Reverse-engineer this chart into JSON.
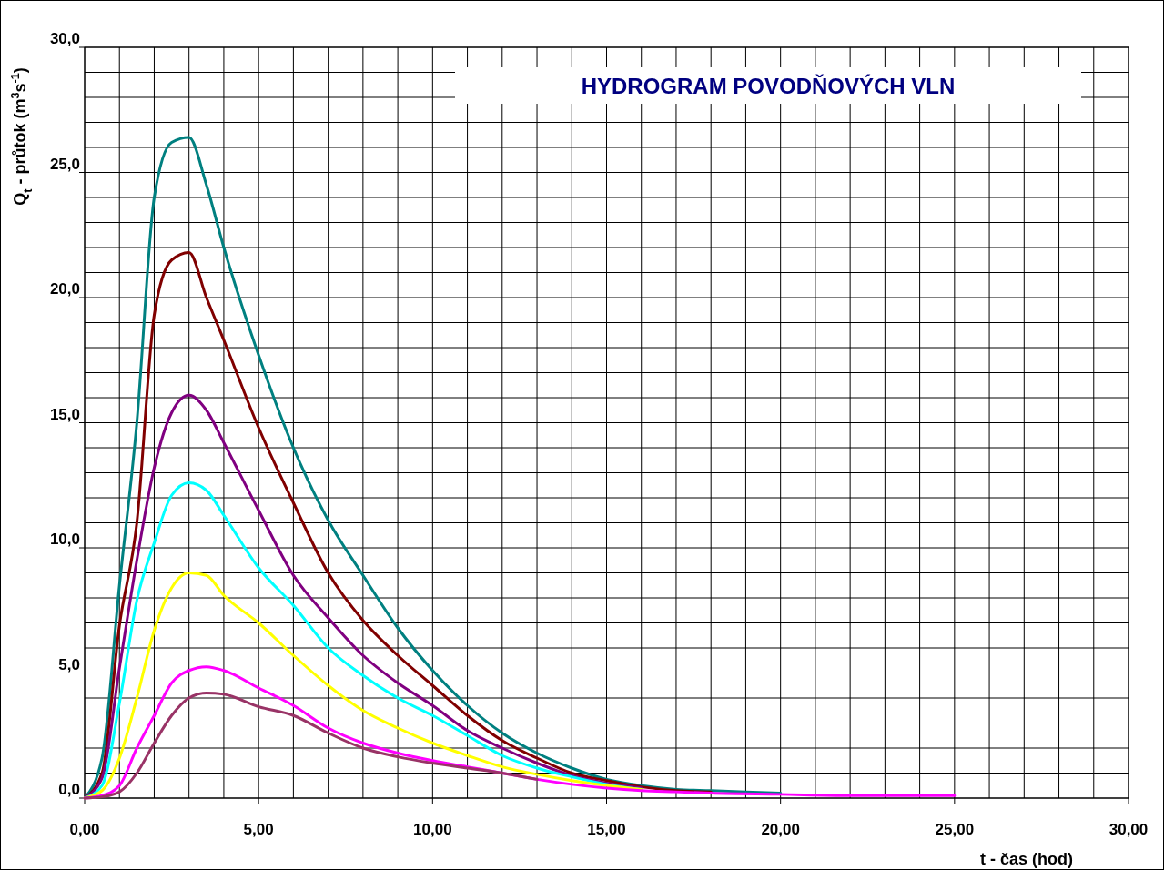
{
  "chart_data": {
    "type": "line",
    "title": "HYDROGRAM  POVODŇOVÝCH  VLN",
    "xlabel": "t -  čas (hod)",
    "ylabel": "Q$_{t}$ -  průtok (m$^{3}$s$^{-1}$)",
    "x": [
      0,
      0.5,
      1,
      1.5,
      2,
      2.5,
      3,
      3.5,
      4,
      5,
      6,
      7,
      8,
      9,
      10,
      11,
      12,
      13,
      14,
      15,
      16,
      17,
      18,
      20,
      22,
      25
    ],
    "series": [
      {
        "color": "#008080",
        "values": [
          0,
          1.6,
          8.5,
          15,
          24,
          26.2,
          26.4,
          24.5,
          22,
          17.7,
          14,
          11.1,
          8.9,
          6.8,
          5.1,
          3.7,
          2.6,
          1.8,
          1.2,
          0.75,
          0.5,
          0.35,
          0.3,
          0.2,
          null,
          null
        ]
      },
      {
        "color": "#800000",
        "values": [
          0,
          1,
          6.9,
          11,
          19.3,
          21.5,
          21.8,
          20,
          18.3,
          14.8,
          11.8,
          9,
          7.1,
          5.7,
          4.5,
          3.3,
          2.3,
          1.6,
          1,
          0.7,
          0.45,
          0.3,
          0.25,
          null,
          null,
          null
        ]
      },
      {
        "color": "#800080",
        "values": [
          0,
          0.8,
          5.2,
          9.5,
          13.2,
          15.4,
          16.1,
          15.5,
          14.2,
          11.5,
          8.9,
          7.2,
          5.7,
          4.6,
          3.7,
          2.7,
          2,
          1.4,
          0.9,
          0.6,
          0.4,
          null,
          null,
          null,
          null,
          null
        ]
      },
      {
        "color": "#00ffff",
        "values": [
          0,
          0.5,
          3.8,
          7.9,
          10.2,
          12.1,
          12.6,
          12.3,
          11.3,
          9.2,
          7.7,
          6,
          4.9,
          4,
          3.3,
          2.5,
          1.7,
          1.2,
          0.85,
          0.55,
          0.35,
          null,
          null,
          null,
          null,
          null
        ]
      },
      {
        "color": "#ffff00",
        "values": [
          0,
          0.3,
          1.6,
          4,
          6.7,
          8.4,
          9,
          8.9,
          8.1,
          7,
          5.7,
          4.5,
          3.5,
          2.8,
          2.2,
          1.7,
          1.25,
          0.95,
          0.7,
          0.5,
          0.35,
          null,
          null,
          null,
          null,
          null
        ]
      },
      {
        "color": "#ff00ff",
        "values": [
          0,
          0.1,
          0.5,
          2,
          3.3,
          4.6,
          5.1,
          5.25,
          5.1,
          4.4,
          3.7,
          2.8,
          2.2,
          1.8,
          1.5,
          1.25,
          1,
          0.75,
          0.55,
          0.4,
          0.3,
          0.25,
          0.2,
          0.15,
          0.1,
          0.1
        ]
      },
      {
        "color": "#993366",
        "values": [
          0,
          0.05,
          0.25,
          1,
          2.2,
          3.3,
          4,
          4.2,
          4.15,
          3.65,
          3.3,
          2.6,
          2,
          1.65,
          1.4,
          1.2,
          1,
          0.75,
          null,
          null,
          null,
          null,
          null,
          null,
          null,
          null
        ]
      }
    ],
    "xlim": [
      0,
      30
    ],
    "ylim": [
      0,
      30
    ],
    "xticks": [
      {
        "value": 0,
        "label": "0,00"
      },
      {
        "value": 1,
        "label": null
      },
      {
        "value": 2,
        "label": null
      },
      {
        "value": 3,
        "label": null
      },
      {
        "value": 4,
        "label": null
      },
      {
        "value": 5,
        "label": "5,00"
      },
      {
        "value": 6,
        "label": null
      },
      {
        "value": 7,
        "label": null
      },
      {
        "value": 8,
        "label": null
      },
      {
        "value": 9,
        "label": null
      },
      {
        "value": 10,
        "label": "10,00"
      },
      {
        "value": 11,
        "label": null
      },
      {
        "value": 12,
        "label": null
      },
      {
        "value": 13,
        "label": null
      },
      {
        "value": 14,
        "label": null
      },
      {
        "value": 15,
        "label": "15,00"
      },
      {
        "value": 16,
        "label": null
      },
      {
        "value": 17,
        "label": null
      },
      {
        "value": 18,
        "label": null
      },
      {
        "value": 19,
        "label": null
      },
      {
        "value": 20,
        "label": "20,00"
      },
      {
        "value": 21,
        "label": null
      },
      {
        "value": 22,
        "label": null
      },
      {
        "value": 23,
        "label": null
      },
      {
        "value": 24,
        "label": null
      },
      {
        "value": 25,
        "label": "25,00"
      },
      {
        "value": 26,
        "label": null
      },
      {
        "value": 27,
        "label": null
      },
      {
        "value": 28,
        "label": null
      },
      {
        "value": 29,
        "label": null
      },
      {
        "value": 30,
        "label": "30,00"
      }
    ],
    "yticks": [
      {
        "value": 0,
        "label": "0,0"
      },
      {
        "value": 1,
        "label": null
      },
      {
        "value": 2,
        "label": null
      },
      {
        "value": 3,
        "label": null
      },
      {
        "value": 4,
        "label": null
      },
      {
        "value": 5,
        "label": "5,0"
      },
      {
        "value": 6,
        "label": null
      },
      {
        "value": 7,
        "label": null
      },
      {
        "value": 8,
        "label": null
      },
      {
        "value": 9,
        "label": null
      },
      {
        "value": 10,
        "label": "10,0"
      },
      {
        "value": 11,
        "label": null
      },
      {
        "value": 12,
        "label": null
      },
      {
        "value": 13,
        "label": null
      },
      {
        "value": 14,
        "label": null
      },
      {
        "value": 15,
        "label": "15,0"
      },
      {
        "value": 16,
        "label": null
      },
      {
        "value": 17,
        "label": null
      },
      {
        "value": 18,
        "label": null
      },
      {
        "value": 19,
        "label": null
      },
      {
        "value": 20,
        "label": "20,0"
      },
      {
        "value": 21,
        "label": null
      },
      {
        "value": 22,
        "label": null
      },
      {
        "value": 23,
        "label": null
      },
      {
        "value": 24,
        "label": null
      },
      {
        "value": 25,
        "label": "25,0"
      },
      {
        "value": 26,
        "label": null
      },
      {
        "value": 27,
        "label": null
      },
      {
        "value": 28,
        "label": null
      },
      {
        "value": 29,
        "label": null
      },
      {
        "value": 30,
        "label": "30,0"
      }
    ],
    "grid": true,
    "marker": "none",
    "line_style": "solid"
  }
}
